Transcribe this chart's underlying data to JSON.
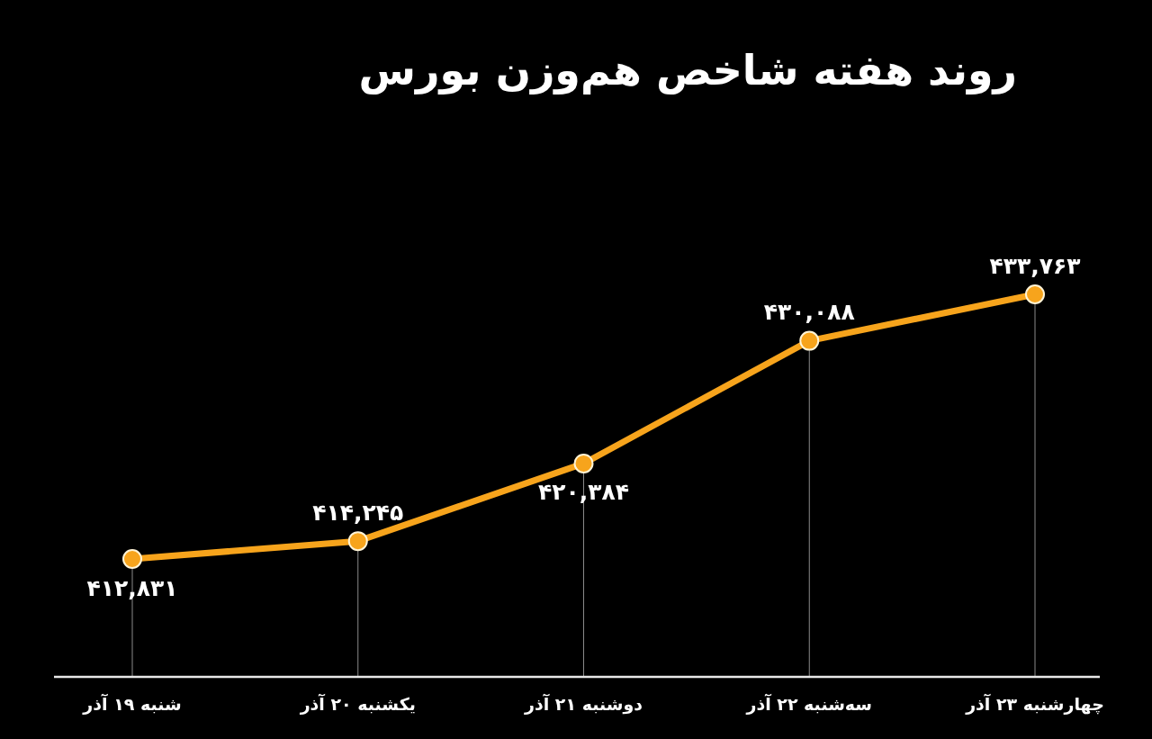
{
  "chart_data": {
    "type": "line",
    "title": "روند هفته شاخص هم‌وزن بورس",
    "categories": [
      "شنبه ۱۹ آذر",
      "یکشنبه ۲۰ آذر",
      "دوشنبه ۲۱ آذر",
      "سه‌شنبه ۲۲ آذر",
      "چهارشنبه ۲۳ آذر"
    ],
    "series": [
      {
        "color": "#f7a41c",
        "values": [
          412831,
          414245,
          420384,
          430088,
          433763
        ],
        "value_labels": [
          "۴۱۲,۸۳۱",
          "۴۱۴,۲۴۵",
          "۴۲۰,۳۸۴",
          "۴۳۰,۰۸۸",
          "۴۳۳,۷۶۳"
        ]
      }
    ],
    "marker": "circle",
    "grid": "x",
    "tick_labels": "x"
  }
}
